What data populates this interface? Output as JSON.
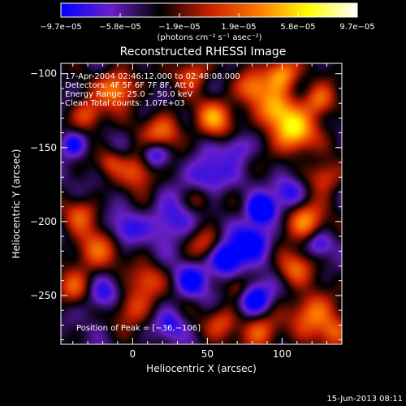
{
  "chart_data": {
    "type": "heatmap",
    "title": "Reconstructed RHESSI Image",
    "xlabel": "Heliocentric X (arcsec)",
    "ylabel": "Heliocentric Y (arcsec)",
    "xlim": [
      -48,
      140
    ],
    "ylim": [
      -283,
      -93
    ],
    "x_ticks": [
      0,
      50,
      100
    ],
    "x_tick_labels": [
      "0",
      "50",
      "100"
    ],
    "y_ticks": [
      -100,
      -150,
      -200,
      -250
    ],
    "y_tick_labels": [
      "−100",
      "−150",
      "−200",
      "−250"
    ],
    "colorbar": {
      "min": -9.7e-05,
      "max": 9.7e-05,
      "tick_labels": [
        "−9.7e−05",
        "−5.8e−05",
        "−1.9e−05",
        "1.9e−05",
        "5.8e−05",
        "9.7e−05"
      ],
      "unit_label": "(photons cm⁻² s⁻¹ asec⁻²)",
      "colormap": [
        "#0000ff",
        "#6a1fc8",
        "#000000",
        "#c81e00",
        "#ff7800",
        "#ffff00",
        "#ffffff"
      ]
    },
    "annotations": {
      "time": "17-Apr-2004 02:46:12.000 to 02:48:08.000",
      "detectors": "Detectors: 4F 5F 6F 7F 8F, Att 0",
      "energy": "Energy Range: 25.0 − 50.0 keV",
      "method": "Clean    Total counts: 1.07E+03",
      "peak": "Position of Peak = [−36,−106]"
    },
    "peak": {
      "x": -36,
      "y": -106
    },
    "blobs": [
      {
        "x": 100,
        "y": -100,
        "r": 8,
        "v": 0.9
      },
      {
        "x": 108,
        "y": -140,
        "r": 10,
        "v": 1.0
      },
      {
        "x": 95,
        "y": -125,
        "r": 9,
        "v": 0.8
      },
      {
        "x": 125,
        "y": -118,
        "r": 8,
        "v": 0.7
      },
      {
        "x": 80,
        "y": -110,
        "r": 8,
        "v": 0.7
      },
      {
        "x": 40,
        "y": -100,
        "r": 8,
        "v": 0.6
      },
      {
        "x": -10,
        "y": -110,
        "r": 9,
        "v": 0.8
      },
      {
        "x": -30,
        "y": -128,
        "r": 8,
        "v": 0.6
      },
      {
        "x": 20,
        "y": -140,
        "r": 9,
        "v": 0.7
      },
      {
        "x": 55,
        "y": -130,
        "r": 9,
        "v": 0.75
      },
      {
        "x": 5,
        "y": -165,
        "r": 9,
        "v": 0.7
      },
      {
        "x": 115,
        "y": -200,
        "r": 9,
        "v": 0.8
      },
      {
        "x": 128,
        "y": -170,
        "r": 8,
        "v": 0.6
      },
      {
        "x": -25,
        "y": -220,
        "r": 11,
        "v": 0.6
      },
      {
        "x": -35,
        "y": -195,
        "r": 8,
        "v": 0.5
      },
      {
        "x": 50,
        "y": -215,
        "r": 8,
        "v": 0.5
      },
      {
        "x": 108,
        "y": -232,
        "r": 8,
        "v": 0.6
      },
      {
        "x": 120,
        "y": -262,
        "r": 10,
        "v": 0.75
      },
      {
        "x": 0,
        "y": -258,
        "r": 9,
        "v": 0.55
      },
      {
        "x": 10,
        "y": -240,
        "r": 8,
        "v": 0.5
      },
      {
        "x": -40,
        "y": -245,
        "r": 8,
        "v": 0.5
      },
      {
        "x": 60,
        "y": -268,
        "r": 8,
        "v": 0.5
      },
      {
        "x": 85,
        "y": -275,
        "r": 9,
        "v": 0.65
      },
      {
        "x": 135,
        "y": -275,
        "r": 8,
        "v": 0.6
      },
      {
        "x": 70,
        "y": -245,
        "r": 6,
        "v": 0.4
      },
      {
        "x": 45,
        "y": -185,
        "r": 7,
        "v": 0.4
      },
      {
        "x": -15,
        "y": -160,
        "r": 6,
        "v": 0.4
      },
      {
        "x": 86,
        "y": -192,
        "r": 6,
        "v": -1.0
      },
      {
        "x": 62,
        "y": -225,
        "r": 8,
        "v": -0.9
      },
      {
        "x": 80,
        "y": -212,
        "r": 9,
        "v": -0.7
      },
      {
        "x": 15,
        "y": -155,
        "r": 7,
        "v": -0.75
      },
      {
        "x": -40,
        "y": -148,
        "r": 6,
        "v": -0.6
      },
      {
        "x": 82,
        "y": -252,
        "r": 8,
        "v": -0.8
      },
      {
        "x": 50,
        "y": -170,
        "r": 10,
        "v": -0.55
      },
      {
        "x": 25,
        "y": -200,
        "r": 10,
        "v": -0.5
      },
      {
        "x": -20,
        "y": -250,
        "r": 8,
        "v": -0.5
      },
      {
        "x": 105,
        "y": -180,
        "r": 8,
        "v": -0.55
      },
      {
        "x": 40,
        "y": -240,
        "r": 8,
        "v": -0.55
      },
      {
        "x": 125,
        "y": -215,
        "r": 6,
        "v": -0.45
      },
      {
        "x": -5,
        "y": -205,
        "r": 8,
        "v": -0.45
      },
      {
        "x": 25,
        "y": -270,
        "r": 7,
        "v": -0.45
      },
      {
        "x": 70,
        "y": -150,
        "r": 7,
        "v": -0.45
      }
    ]
  },
  "footer": {
    "timestamp": "15-Jun-2013 08:11"
  }
}
